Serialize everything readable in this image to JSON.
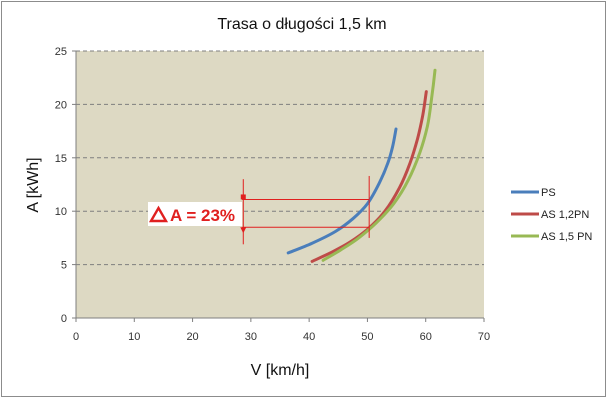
{
  "chart_data": {
    "type": "line",
    "title": "Trasa o długości 1,5 km",
    "xlabel": "V [km/h]",
    "ylabel": "A [kWh]",
    "xlim": [
      0,
      70
    ],
    "ylim": [
      0,
      25
    ],
    "xticks": [
      0,
      10,
      20,
      30,
      40,
      50,
      60,
      70
    ],
    "yticks": [
      0,
      5,
      10,
      15,
      20,
      25
    ],
    "grid": "horizontal-dashed",
    "plot_background": "#ddd9c3",
    "legend_position": "right",
    "series": [
      {
        "name": "PS",
        "color": "#4a7ebb",
        "x": [
          36.4,
          40.5,
          44.5,
          47.5,
          50.0,
          52.0,
          53.5,
          54.3,
          54.9
        ],
        "y": [
          6.1,
          7.0,
          8.1,
          9.3,
          10.7,
          12.6,
          14.5,
          16.0,
          17.7
        ]
      },
      {
        "name": "AS 1,2PN",
        "color": "#be4b48",
        "x": [
          40.5,
          44.0,
          47.0,
          50.0,
          53.0,
          55.5,
          57.3,
          58.6,
          59.5,
          60.1
        ],
        "y": [
          5.3,
          6.2,
          7.1,
          8.3,
          10.0,
          12.2,
          14.5,
          16.8,
          19.0,
          21.2
        ]
      },
      {
        "name": "AS 1,5 PN",
        "color": "#98b954",
        "x": [
          42.4,
          45.5,
          48.5,
          51.5,
          54.5,
          57.0,
          59.0,
          60.3,
          61.0,
          61.6
        ],
        "y": [
          5.4,
          6.4,
          7.5,
          8.9,
          10.7,
          12.9,
          15.5,
          18.0,
          20.5,
          23.2
        ]
      }
    ],
    "annotation": {
      "label": "A = 23%",
      "color": "#e0201f",
      "upper_y": 11.1,
      "lower_y": 8.5,
      "x_start": 28.5,
      "x_end": 50.3,
      "arrow_x": 28.7,
      "vline_x": 50.3,
      "vline_y": [
        7.5,
        13.3
      ]
    }
  }
}
